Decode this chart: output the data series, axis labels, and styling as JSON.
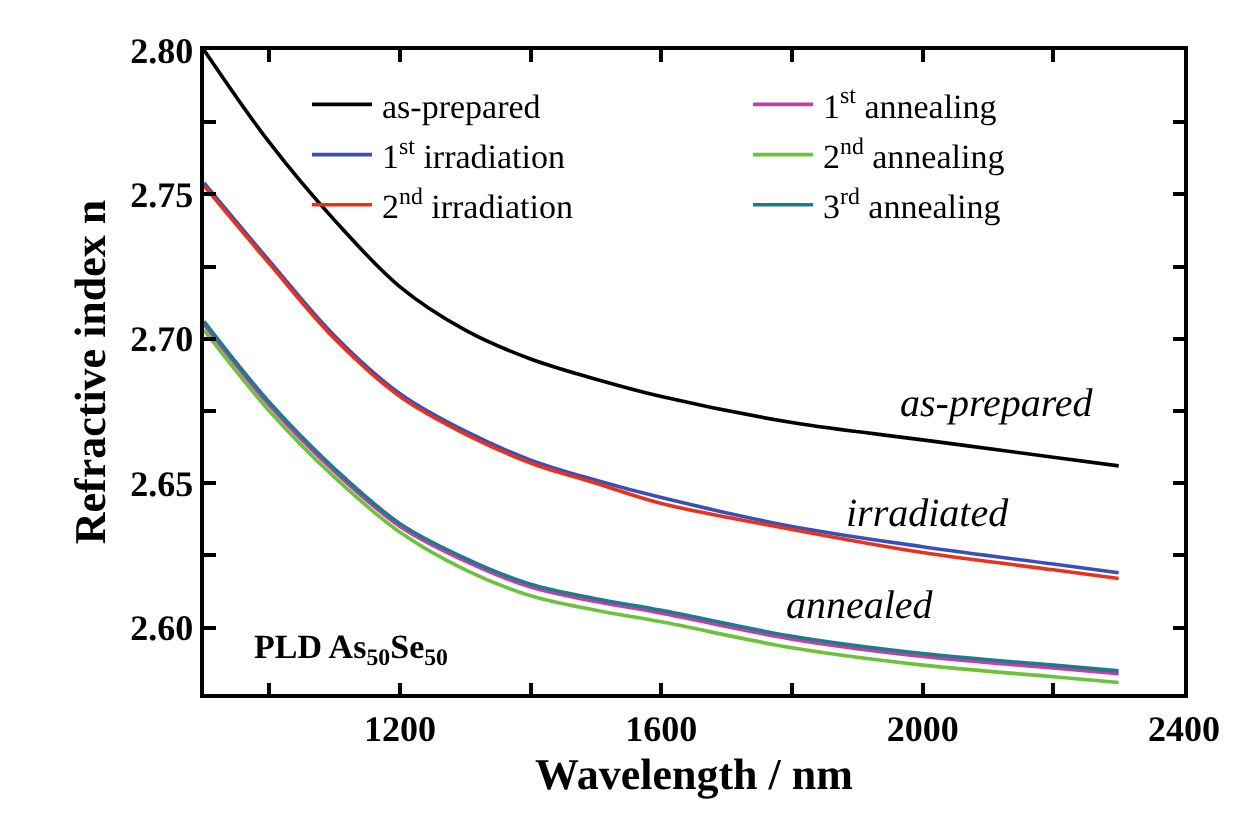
{
  "chart_data": {
    "type": "line",
    "xlabel": "Wavelength / nm",
    "ylabel": "Refractive index n",
    "x": [
      900,
      1000,
      1100,
      1200,
      1300,
      1400,
      1500,
      1600,
      1800,
      2000,
      2200,
      2300
    ],
    "series": [
      {
        "name": "as-prepared",
        "color": "#000000",
        "values": [
          2.8,
          2.768,
          2.741,
          2.718,
          2.703,
          2.693,
          2.686,
          2.68,
          2.671,
          2.665,
          2.659,
          2.656
        ]
      },
      {
        "name": "1$^{st}$ irradiation",
        "color": "#3a4fb8",
        "values": [
          2.754,
          2.727,
          2.701,
          2.681,
          2.668,
          2.658,
          2.651,
          2.645,
          2.635,
          2.628,
          2.622,
          2.619
        ]
      },
      {
        "name": "2$^{nd}$ irradiation",
        "color": "#e8321e",
        "values": [
          2.753,
          2.726,
          2.7,
          2.68,
          2.667,
          2.657,
          2.65,
          2.643,
          2.634,
          2.626,
          2.62,
          2.617
        ]
      },
      {
        "name": "1$^{st}$ annealing",
        "color": "#c23fa8",
        "values": [
          2.705,
          2.677,
          2.654,
          2.635,
          2.623,
          2.614,
          2.609,
          2.605,
          2.596,
          2.59,
          2.586,
          2.584
        ]
      },
      {
        "name": "2$^{nd}$ annealing",
        "color": "#6cc23a",
        "values": [
          2.703,
          2.675,
          2.652,
          2.633,
          2.62,
          2.611,
          2.606,
          2.602,
          2.593,
          2.587,
          2.583,
          2.581
        ]
      },
      {
        "name": "3$^{rd}$ annealing",
        "color": "#1f7a8c",
        "values": [
          2.706,
          2.678,
          2.655,
          2.636,
          2.624,
          2.615,
          2.61,
          2.606,
          2.597,
          2.591,
          2.587,
          2.585
        ]
      }
    ],
    "xlim": [
      900,
      2400
    ],
    "xticks": [
      {
        "value": 1000,
        "label": null
      },
      1200,
      {
        "value": 1400,
        "label": null
      },
      1600,
      {
        "value": 1800,
        "label": null
      },
      2000,
      {
        "value": 2200,
        "label": null
      },
      2400
    ],
    "ylim": [
      2.577,
      2.8
    ],
    "yticks": [
      {
        "value": 2.6,
        "label": "2.60"
      },
      {
        "value": 2.625,
        "label": null
      },
      2.65,
      {
        "value": 2.675,
        "label": null
      },
      {
        "value": 2.7,
        "label": "2.70"
      },
      {
        "value": 2.725,
        "label": null
      },
      2.75,
      {
        "value": 2.775,
        "label": null
      },
      {
        "value": 2.8,
        "label": "2.80"
      }
    ],
    "annotations": [
      "as-prepared",
      "irradiated",
      "annealed",
      "PLD As$_{50}$Se$_{50}$"
    ],
    "legend": "top",
    "marker": "none",
    "line_style": "solid"
  }
}
